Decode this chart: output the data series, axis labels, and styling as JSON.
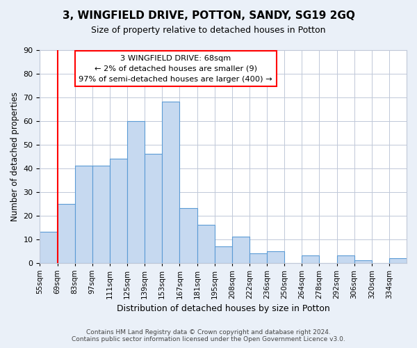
{
  "title": "3, WINGFIELD DRIVE, POTTON, SANDY, SG19 2GQ",
  "subtitle": "Size of property relative to detached houses in Potton",
  "xlabel": "Distribution of detached houses by size in Potton",
  "ylabel": "Number of detached properties",
  "bin_labels": [
    "55sqm",
    "69sqm",
    "83sqm",
    "97sqm",
    "111sqm",
    "125sqm",
    "139sqm",
    "153sqm",
    "167sqm",
    "181sqm",
    "195sqm",
    "208sqm",
    "222sqm",
    "236sqm",
    "250sqm",
    "264sqm",
    "278sqm",
    "292sqm",
    "306sqm",
    "320sqm",
    "334sqm"
  ],
  "bar_values": [
    13,
    25,
    41,
    41,
    44,
    60,
    46,
    68,
    23,
    16,
    7,
    11,
    4,
    5,
    0,
    3,
    0,
    3,
    1,
    0,
    2
  ],
  "bar_color": "#c6d9f0",
  "bar_edge_color": "#5b9bd5",
  "highlight_color": "#ff0000",
  "highlight_bar_index": 1,
  "ylim": [
    0,
    90
  ],
  "yticks": [
    0,
    10,
    20,
    30,
    40,
    50,
    60,
    70,
    80,
    90
  ],
  "annotation_title": "3 WINGFIELD DRIVE: 68sqm",
  "annotation_line1": "← 2% of detached houses are smaller (9)",
  "annotation_line2": "97% of semi-detached houses are larger (400) →",
  "annotation_box_color": "#ffffff",
  "annotation_box_edge": "#ff0000",
  "footer1": "Contains HM Land Registry data © Crown copyright and database right 2024.",
  "footer2": "Contains public sector information licensed under the Open Government Licence v3.0.",
  "bg_color": "#eaf0f8",
  "plot_bg_color": "#ffffff",
  "grid_color": "#c0c8d8"
}
